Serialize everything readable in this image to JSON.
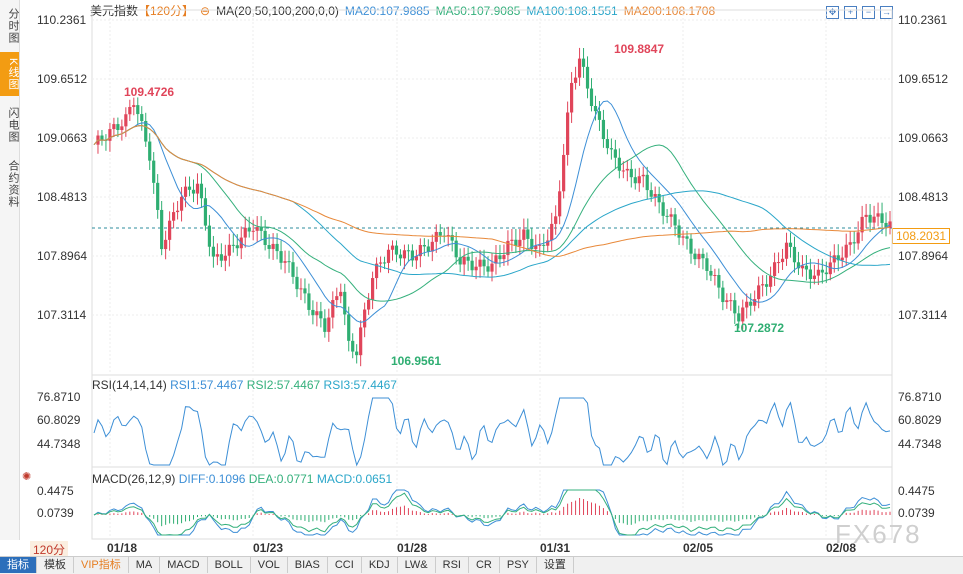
{
  "sidebar": {
    "tabs": [
      "分时图",
      "K线图",
      "闪电图",
      "合约资料"
    ],
    "active": 1
  },
  "header": {
    "symbol": "美元指数",
    "period": "【120分】",
    "ma_label": "MA(20,50,100,200,0,0)",
    "ma20": "MA20:107.9885",
    "ma50": "MA50:107.9085",
    "ma100": "MA100:108.1551",
    "ma200": "MA200:108.1708"
  },
  "colors": {
    "up": "#e0455a",
    "down": "#2fae72",
    "ma20": "#3d8fd6",
    "ma50": "#35b07c",
    "ma100": "#2aa6c9",
    "ma200": "#e8893a",
    "accent": "#f39c12"
  },
  "price_axis": [
    "110.2361",
    "109.6512",
    "109.0663",
    "108.4813",
    "107.8964",
    "107.3114"
  ],
  "current_price": "108.2031",
  "annotations": {
    "high1": "109.4726",
    "high2": "109.8847",
    "low1": "106.9561",
    "low2": "107.2872"
  },
  "rsi": {
    "label": "RSI(14,14,14)",
    "rsi1": "RSI1:57.4467",
    "rsi2": "RSI2:57.4467",
    "rsi3": "RSI3:57.4467",
    "axis": [
      "76.8710",
      "60.8029",
      "44.7348"
    ]
  },
  "macd": {
    "label": "MACD(26,12,9)",
    "diff": "DIFF:0.1096",
    "dea": "DEA:0.0771",
    "macd": "MACD:0.0651",
    "axis": [
      "0.4475",
      "0.0739"
    ]
  },
  "x_labels": [
    "01/18",
    "01/23",
    "01/28",
    "01/31",
    "02/05",
    "02/08"
  ],
  "period_button": "120分",
  "bottom_tabs": [
    "指标",
    "模板",
    "VIP指标",
    "MA",
    "MACD",
    "BOLL",
    "VOL",
    "BIAS",
    "CCI",
    "KDJ",
    "LW&",
    "RSI",
    "CR",
    "PSY",
    "设置"
  ],
  "watermark": "FX678"
}
